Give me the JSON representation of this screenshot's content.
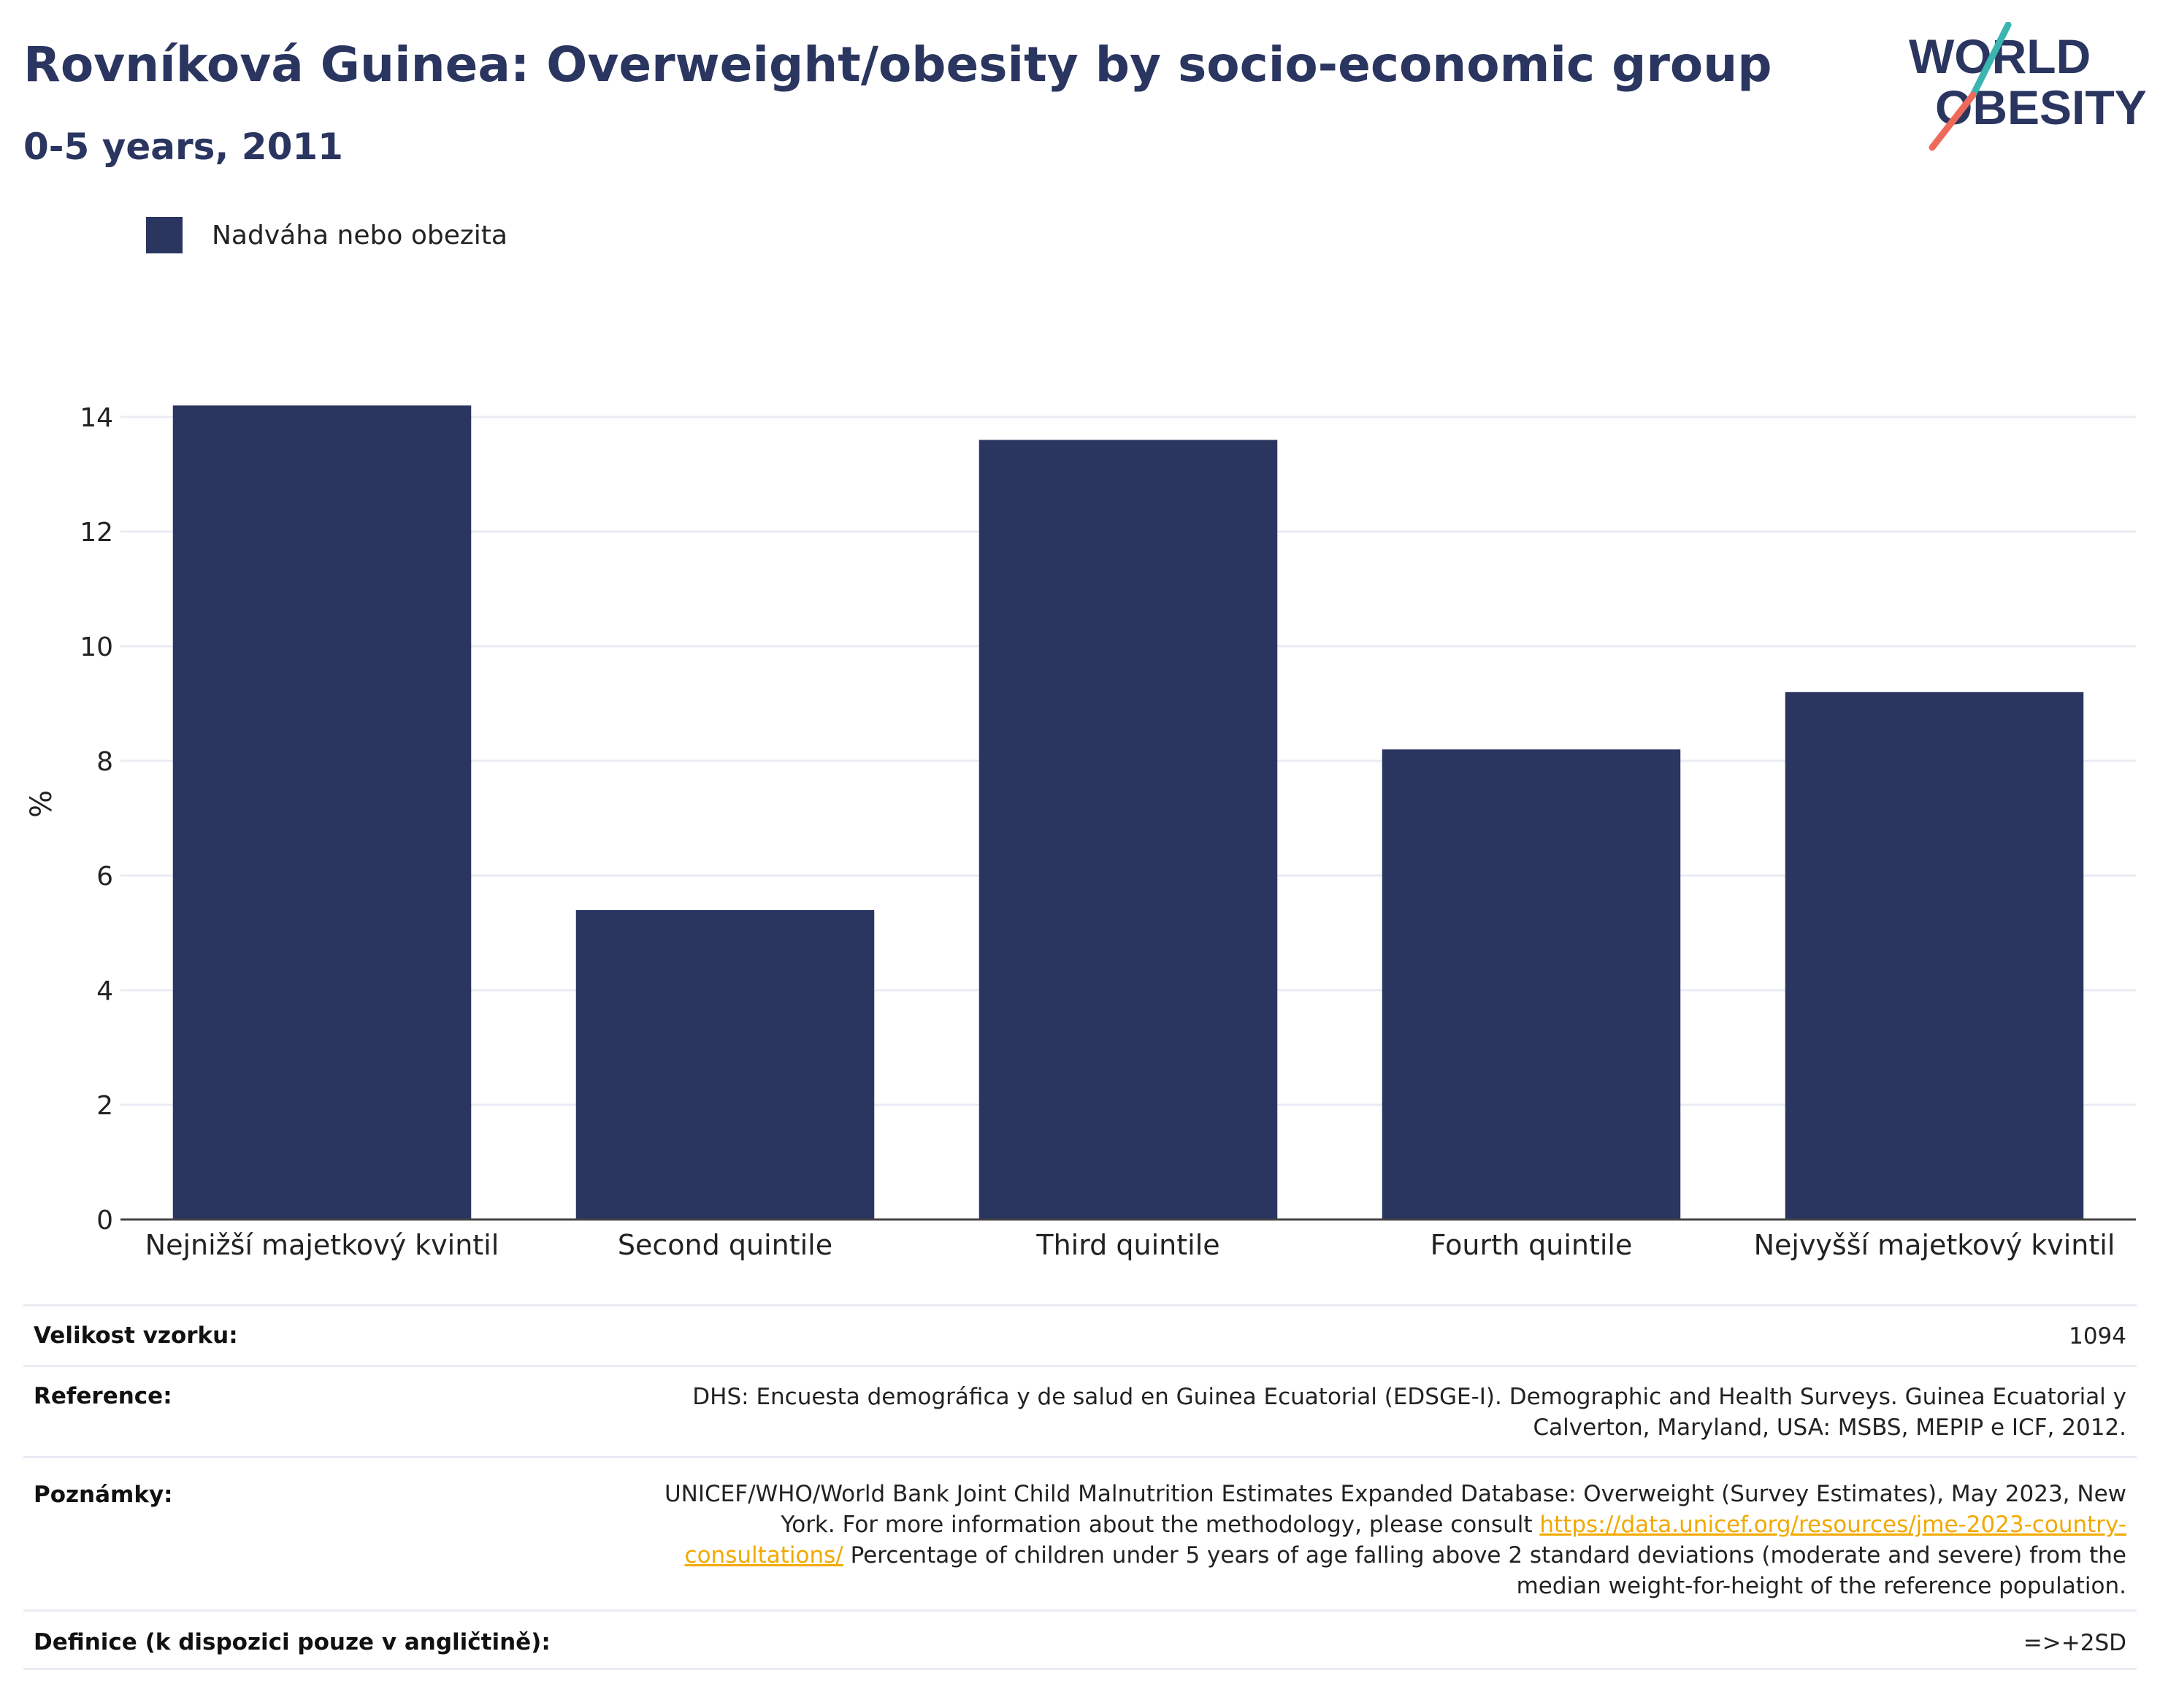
{
  "header": {
    "title": "Rovníková Guinea: Overweight/obesity by socio-economic group",
    "subtitle": "0-5 years, 2011"
  },
  "logo": {
    "line1": "WORLD",
    "line2": "OBESITY"
  },
  "colors": {
    "bar": "#2a3560",
    "grid": "#e9ecf4",
    "axis": "#444444",
    "link": "#f2a900",
    "logo_teal": "#3ab5b0",
    "logo_coral": "#ef6a5a"
  },
  "chart_data": {
    "type": "bar",
    "categories": [
      "Nejnižší majetkový kvintil",
      "Second quintile",
      "Third quintile",
      "Fourth quintile",
      "Nejvyšší majetkový kvintil"
    ],
    "series": [
      {
        "name": "Nadváha nebo obezita",
        "values": [
          14.2,
          5.4,
          13.6,
          8.2,
          9.2
        ]
      }
    ],
    "ylabel": "%",
    "ylim": [
      0,
      14.5
    ],
    "yticks": [
      0,
      2,
      4,
      6,
      8,
      10,
      12,
      14
    ],
    "grid": true,
    "legend": "top-left"
  },
  "meta": {
    "sample_size_label": "Velikost vzorku:",
    "sample_size_value": "1094",
    "reference_label": "Reference:",
    "reference_value": "DHS: Encuesta demográfica y de salud en Guinea Ecuatorial (EDSGE-I). Demographic and Health Surveys. Guinea Ecuatorial y Calverton, Maryland, USA: MSBS, MEPIP e ICF, 2012.",
    "notes_label": "Poznámky:",
    "notes_text_before": "UNICEF/WHO/World Bank Joint Child Malnutrition Estimates Expanded Database: Overweight (Survey Estimates), May 2023, New York. For more information about the methodology, please consult ",
    "notes_link": "https://data.unicef.org/resources/jme-2023-country-consultations/",
    "notes_text_after": " Percentage of children under 5 years of age falling above 2 standard deviations (moderate and severe) from the median weight-for-height of the reference population.",
    "definition_label": "Definice (k dispozici pouze v angličtině):",
    "definition_value": "=>+2SD"
  }
}
